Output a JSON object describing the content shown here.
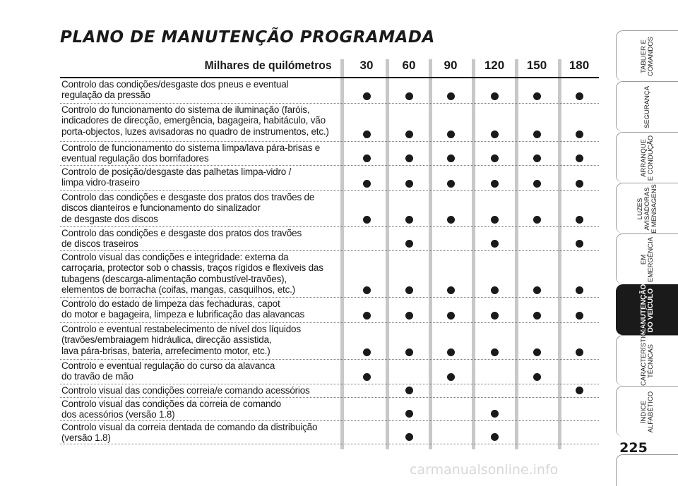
{
  "title": "PLANO DE MANUTENÇÃO PROGRAMADA",
  "header": {
    "label": "Milhares de quilómetros",
    "intervals": [
      "30",
      "60",
      "90",
      "120",
      "150",
      "180"
    ]
  },
  "rows": [
    {
      "text": "Controlo das condições/desgaste dos pneus e eventual\nregulação da pressão",
      "marks": [
        1,
        1,
        1,
        1,
        1,
        1
      ]
    },
    {
      "text": "Controlo do funcionamento do sistema de iluminação (faróis,\nindicadores de direcção, emergência, bagageira, habitáculo, vão\nporta-objectos, luzes avisadoras no quadro de instrumentos, etc.)",
      "marks": [
        1,
        1,
        1,
        1,
        1,
        1
      ]
    },
    {
      "text": "Controlo de funcionamento do sistema limpa/lava pára-brisas e\neventual regulação dos borrifadores",
      "marks": [
        1,
        1,
        1,
        1,
        1,
        1
      ]
    },
    {
      "text": "Controlo de posição/desgaste das palhetas limpa-vidro /\nlimpa vidro-traseiro",
      "marks": [
        1,
        1,
        1,
        1,
        1,
        1
      ]
    },
    {
      "text": "Controlo das condições e desgaste dos pratos dos travões de\ndiscos dianteiros e funcionamento do sinalizador\nde desgaste dos discos",
      "marks": [
        1,
        1,
        1,
        1,
        1,
        1
      ]
    },
    {
      "text": "Controlo das condições e desgaste dos pratos dos travões\nde discos traseiros",
      "marks": [
        0,
        1,
        0,
        1,
        0,
        1
      ]
    },
    {
      "text": "Controlo visual das condições e integridade: externa da\ncarroçaria, protector sob o chassis, traços rígidos e flexíveis das\ntubagens (descarga-alimentação combustível-travões),\nelementos de borracha (coifas, mangas, casquilhos, etc.)",
      "marks": [
        1,
        1,
        1,
        1,
        1,
        1
      ]
    },
    {
      "text": "Controlo do estado de limpeza das fechaduras, capot\ndo motor e bagageira, limpeza e lubrificação das alavancas",
      "marks": [
        1,
        1,
        1,
        1,
        1,
        1
      ]
    },
    {
      "text": "Controlo e eventual restabelecimento de nível dos líquidos\n(travões/embraiagem hidráulica, direcção assistida,\nlava pára-brisas, bateria, arrefecimento motor, etc.)",
      "marks": [
        1,
        1,
        1,
        1,
        1,
        1
      ]
    },
    {
      "text": "Controlo e eventual regulação do curso da alavanca\ndo travão de mão",
      "marks": [
        1,
        0,
        1,
        0,
        1,
        0
      ]
    },
    {
      "text": "Controlo visual das condições correia/e comando acessórios",
      "marks": [
        0,
        1,
        0,
        0,
        0,
        1
      ]
    },
    {
      "text": "Controlo visual das condições da correia de comando\ndos acessórios (versão 1.8)",
      "marks": [
        0,
        1,
        0,
        1,
        0,
        0
      ]
    },
    {
      "text": "Controlo visual da correia dentada de comando da distribuição\n(versão 1.8)",
      "marks": [
        0,
        1,
        0,
        1,
        0,
        0
      ]
    }
  ],
  "side_tabs": [
    {
      "label": "TABLIER E\nCOMANDOS",
      "active": false
    },
    {
      "label": "SEGURANÇA",
      "active": false
    },
    {
      "label": "ARRANQUE\nE CONDUÇÃO",
      "active": false
    },
    {
      "label": "LUZES\nAVISADORAS\nE MENSAGENS",
      "active": false
    },
    {
      "label": "EM EMERGÊNCIA",
      "active": false
    },
    {
      "label": "MANUTENÇÃO\nDO VEÍCULO",
      "active": true
    },
    {
      "label": "CARACTERÍSTICAS\nTÉCNICAS",
      "active": false
    },
    {
      "label": "ÍNDICE\nALFABÉTICO",
      "active": false
    }
  ],
  "page_number": "225",
  "watermark": "carmanualsonline.info"
}
